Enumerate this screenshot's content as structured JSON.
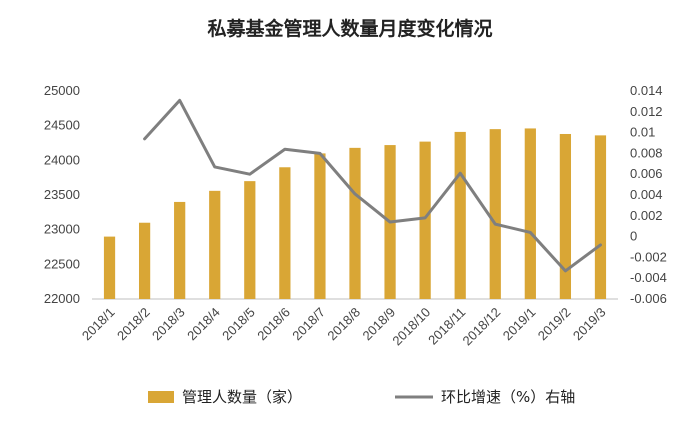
{
  "chart_data": {
    "type": "bar",
    "title": "私募基金管理人数量月度变化情况",
    "categories": [
      "2018/1",
      "2018/2",
      "2018/3",
      "2018/4",
      "2018/5",
      "2018/6",
      "2018/7",
      "2018/8",
      "2018/9",
      "2018/10",
      "2018/11",
      "2018/12",
      "2019/1",
      "2019/2",
      "2019/3"
    ],
    "series": [
      {
        "name": "管理人数量（家）",
        "type": "bar",
        "axis": "left",
        "color": "#D9A635",
        "values": [
          22900,
          23100,
          23400,
          23560,
          23700,
          23900,
          24100,
          24180,
          24220,
          24270,
          24410,
          24450,
          24460,
          24380,
          24360
        ]
      },
      {
        "name": "环比增速（%）右轴",
        "type": "line",
        "axis": "right",
        "color": "#7F7F7F",
        "values": [
          null,
          0.0094,
          0.0131,
          0.0067,
          0.006,
          0.0084,
          0.008,
          0.0041,
          0.0014,
          0.0018,
          0.0061,
          0.0012,
          0.0004,
          -0.0033,
          -0.0008
        ]
      }
    ],
    "y_left": {
      "ylim": [
        22000,
        25000
      ],
      "ticks": [
        "22000",
        "22500",
        "23000",
        "23500",
        "24000",
        "24500",
        "25000"
      ]
    },
    "y_right": {
      "ylim": [
        -0.006,
        0.014
      ],
      "ticks": [
        "-0.006",
        "-0.004",
        "-0.002",
        "0",
        "0.002",
        "0.004",
        "0.006",
        "0.008",
        "0.01",
        "0.012",
        "0.014"
      ]
    },
    "grid": false,
    "legend_position": "bottom"
  }
}
